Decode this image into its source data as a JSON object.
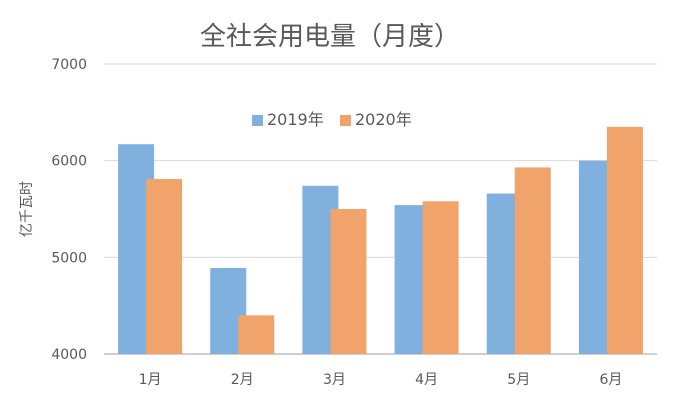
{
  "chart_data": {
    "type": "bar",
    "title": "全社会用电量（月度）",
    "xlabel": "",
    "ylabel": "亿千瓦时",
    "categories": [
      "1月",
      "2月",
      "3月",
      "4月",
      "5月",
      "6月"
    ],
    "series": [
      {
        "name": "2019年",
        "values": [
          6170,
          4890,
          5740,
          5540,
          5660,
          6000
        ],
        "color": "#7FB0DE"
      },
      {
        "name": "2020年",
        "values": [
          5810,
          4400,
          5500,
          5580,
          5930,
          6350
        ],
        "color": "#F0A36B"
      }
    ],
    "ylim": [
      4000,
      7000
    ],
    "yticks": [
      4000,
      5000,
      6000,
      7000
    ],
    "grid": true,
    "legend_position": "top-center"
  }
}
